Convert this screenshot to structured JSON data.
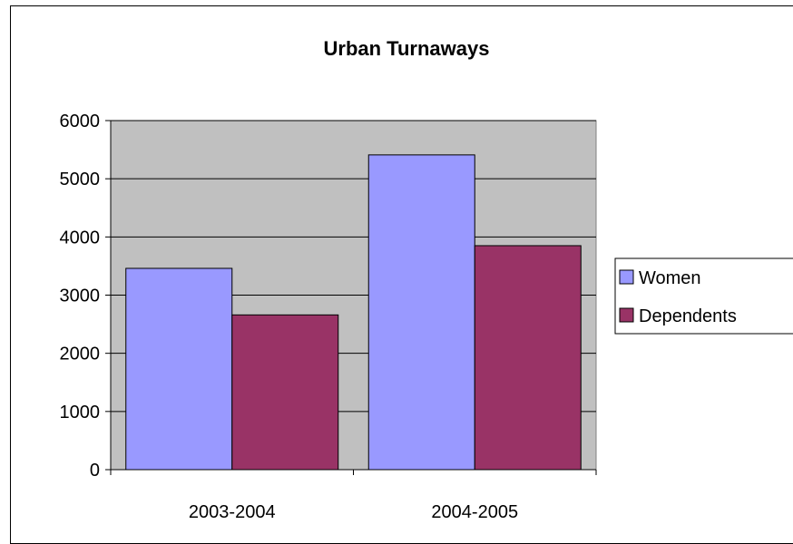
{
  "chart_data": {
    "type": "bar",
    "title": "Urban Turnaways",
    "xlabel": "",
    "ylabel": "",
    "categories": [
      "2003-2004",
      "2004-2005"
    ],
    "series": [
      {
        "name": "Women",
        "values": [
          3460,
          5410
        ],
        "color": "#9999ff"
      },
      {
        "name": "Dependents",
        "values": [
          2660,
          3850
        ],
        "color": "#993366"
      }
    ],
    "ylim": [
      0,
      6000
    ],
    "yticks": [
      "0",
      "1000",
      "2000",
      "3000",
      "4000",
      "5000",
      "6000"
    ],
    "grid": true,
    "plot_background": "#c0c0c0",
    "legend_position": "right"
  }
}
